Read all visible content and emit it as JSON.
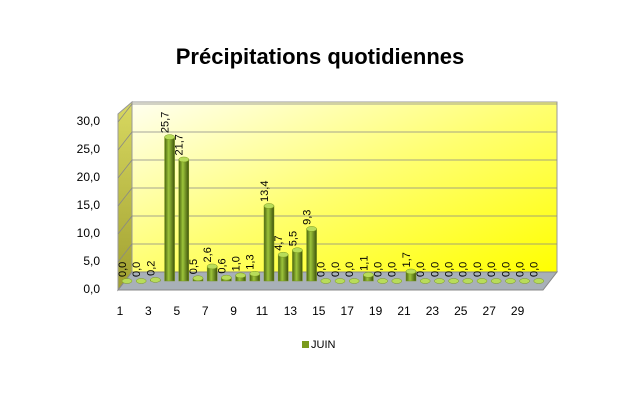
{
  "chart_data": {
    "type": "bar",
    "title": "Précipitations quotidiennes",
    "categories": [
      "1",
      null,
      "3",
      null,
      "5",
      null,
      "7",
      null,
      "9",
      null,
      "11",
      null,
      "13",
      null,
      "15",
      null,
      "17",
      null,
      "19",
      null,
      "21",
      null,
      "23",
      null,
      "25",
      null,
      "27",
      null,
      "29",
      null
    ],
    "series": [
      {
        "name": "JUIN",
        "color": "#7a9a1c",
        "values": [
          0,
          0,
          0.2,
          25.7,
          21.7,
          0.5,
          2.6,
          0.6,
          1.0,
          1.3,
          13.4,
          4.7,
          5.5,
          9.3,
          0,
          0,
          0,
          1.1,
          0,
          0,
          1.7,
          0,
          0,
          0,
          0,
          0,
          0,
          0,
          0,
          0
        ],
        "value_labels": [
          "0,0",
          "0,0",
          "0,2",
          "25,7",
          "21,7",
          "0,5",
          "2,6",
          "0,6",
          "1,0",
          "1,3",
          "13,4",
          "4,7",
          "5,5",
          "9,3",
          "0,0",
          "0,0",
          "0,0",
          "1,1",
          "0,0",
          "0,0",
          "1,7",
          "0,0",
          "0,0",
          "0,0",
          "0,0",
          "0,0",
          "0,0",
          "0,0",
          "0,0",
          "0,0"
        ]
      }
    ],
    "ylim": [
      0,
      30
    ],
    "yticks": [
      {
        "value": 0,
        "label": "0,0"
      },
      {
        "value": 5,
        "label": "5,0"
      },
      {
        "value": 10,
        "label": "10,0"
      },
      {
        "value": 15,
        "label": "15,0"
      },
      {
        "value": 20,
        "label": "20,0"
      },
      {
        "value": 25,
        "label": "25,0"
      },
      {
        "value": 30,
        "label": "30,0"
      }
    ],
    "grid": true
  }
}
